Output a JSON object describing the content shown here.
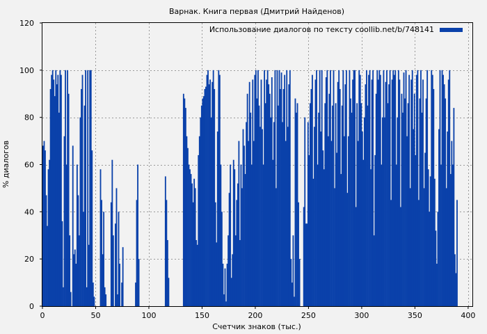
{
  "chart_data": {
    "type": "bar",
    "title": "Варнак. Книга первая (Дмитрий Найденов)",
    "xlabel": "Счетчик знаков (тыс.)",
    "ylabel": "% диалогов",
    "xlim": [
      0,
      404
    ],
    "ylim": [
      0,
      120
    ],
    "xticks": [
      0,
      50,
      100,
      150,
      200,
      250,
      300,
      350,
      400
    ],
    "yticks": [
      0,
      20,
      40,
      60,
      80,
      100,
      120
    ],
    "grid": true,
    "legend_position": "top-right",
    "colors": {
      "series": "#0a41aa",
      "background": "#f2f2f2",
      "grid": "#999999"
    },
    "series": [
      {
        "name": "Использование диалогов по тексту coollib.net/b/748141",
        "x_step": 1,
        "values": [
          68,
          70,
          66,
          47,
          34,
          58,
          62,
          92,
          98,
          100,
          96,
          89,
          100,
          94,
          98,
          82,
          100,
          98,
          36,
          8,
          72,
          100,
          60,
          100,
          90,
          30,
          6,
          0,
          68,
          22,
          24,
          18,
          60,
          47,
          30,
          80,
          92,
          98,
          40,
          85,
          100,
          8,
          100,
          26,
          100,
          100,
          66,
          10,
          4,
          0,
          0,
          0,
          0,
          0,
          58,
          45,
          22,
          40,
          8,
          5,
          0,
          0,
          0,
          0,
          44,
          62,
          30,
          0,
          35,
          50,
          5,
          40,
          18,
          0,
          10,
          25,
          0,
          0,
          0,
          0,
          0,
          0,
          0,
          0,
          0,
          0,
          0,
          10,
          45,
          60,
          20,
          0,
          0,
          0,
          0,
          0,
          0,
          0,
          0,
          0,
          0,
          0,
          0,
          0,
          0,
          0,
          0,
          0,
          0,
          0,
          0,
          0,
          0,
          0,
          0,
          55,
          45,
          28,
          12,
          0,
          0,
          0,
          0,
          0,
          0,
          0,
          0,
          0,
          0,
          0,
          0,
          0,
          90,
          88,
          84,
          72,
          67,
          60,
          58,
          56,
          52,
          44,
          54,
          50,
          28,
          26,
          64,
          72,
          80,
          85,
          88,
          89,
          92,
          93,
          98,
          100,
          94,
          96,
          80,
          95,
          100,
          92,
          44,
          27,
          74,
          100,
          98,
          60,
          40,
          18,
          5,
          16,
          2,
          18,
          30,
          48,
          60,
          12,
          22,
          62,
          58,
          30,
          45,
          52,
          70,
          28,
          60,
          50,
          75,
          68,
          56,
          78,
          90,
          70,
          95,
          82,
          60,
          96,
          70,
          98,
          100,
          88,
          100,
          85,
          76,
          96,
          75,
          60,
          100,
          86,
          96,
          100,
          94,
          90,
          80,
          97,
          62,
          78,
          100,
          50,
          100,
          85,
          100,
          92,
          99,
          78,
          92,
          98,
          70,
          100,
          76,
          94,
          100,
          20,
          10,
          30,
          4,
          88,
          82,
          86,
          44,
          20,
          0,
          0,
          0,
          42,
          80,
          35,
          35,
          78,
          64,
          86,
          92,
          98,
          54,
          76,
          96,
          100,
          60,
          82,
          100,
          74,
          100,
          66,
          58,
          86,
          97,
          100,
          72,
          90,
          100,
          70,
          85,
          100,
          50,
          86,
          65,
          95,
          100,
          92,
          56,
          85,
          100,
          72,
          94,
          100,
          48,
          72,
          100,
          88,
          82,
          96,
          100,
          100,
          42,
          86,
          70,
          100,
          98,
          86,
          74,
          62,
          80,
          94,
          100,
          85,
          98,
          100,
          58,
          96,
          100,
          30,
          64,
          90,
          100,
          96,
          100,
          98,
          60,
          80,
          100,
          80,
          95,
          100,
          86,
          94,
          100,
          45,
          96,
          100,
          98,
          100,
          60,
          80,
          100,
          96,
          42,
          90,
          82,
          99,
          88,
          100,
          72,
          86,
          98,
          50,
          96,
          100,
          75,
          90,
          64,
          98,
          100,
          45,
          88,
          100,
          82,
          96,
          50,
          65,
          88,
          100,
          58,
          40,
          55,
          100,
          98,
          92,
          54,
          32,
          18,
          40,
          75,
          100,
          60,
          100,
          98,
          94,
          88,
          50,
          74,
          96,
          100,
          56,
          70,
          60,
          84,
          22,
          14,
          45
        ]
      }
    ]
  }
}
